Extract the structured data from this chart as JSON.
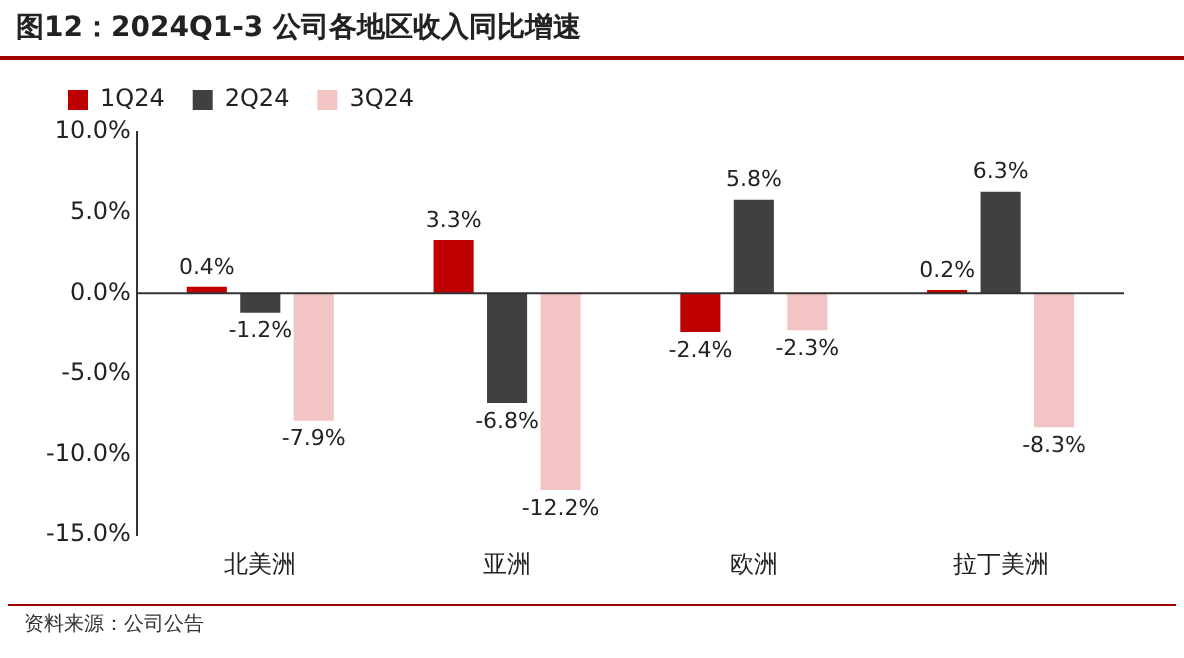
{
  "chart_data": {
    "type": "bar",
    "title": "图12：2024Q1-3 公司各地区收入同比增速",
    "categories": [
      "北美洲",
      "亚洲",
      "欧洲",
      "拉丁美洲"
    ],
    "series": [
      {
        "name": "1Q24",
        "color": "#c00000",
        "values": [
          0.4,
          3.3,
          -2.4,
          0.2
        ],
        "value_labels": [
          "0.4%",
          "3.3%",
          "-2.4%",
          "0.2%"
        ]
      },
      {
        "name": "2Q24",
        "color": "#404040",
        "values": [
          -1.2,
          -6.8,
          5.8,
          6.3
        ],
        "value_labels": [
          "-1.2%",
          "-6.8%",
          "5.8%",
          "6.3%"
        ]
      },
      {
        "name": "3Q24",
        "color": "#f2c4c4",
        "values": [
          -7.9,
          -12.2,
          -2.3,
          -8.3
        ],
        "value_labels": [
          "-7.9%",
          "-12.2%",
          "-2.3%",
          "-8.3%"
        ]
      }
    ],
    "ylim": [
      -15,
      10
    ],
    "yticks": [
      {
        "value": -15,
        "label": "-15.0%"
      },
      {
        "value": -10,
        "label": "-10.0%"
      },
      {
        "value": -5,
        "label": "-5.0%"
      },
      {
        "value": 0,
        "label": "0.0%"
      },
      {
        "value": 5,
        "label": "5.0%"
      },
      {
        "value": 10,
        "label": "10.0%"
      }
    ],
    "legend": "top",
    "annotations": [
      "资料来源：公司公告"
    ]
  }
}
